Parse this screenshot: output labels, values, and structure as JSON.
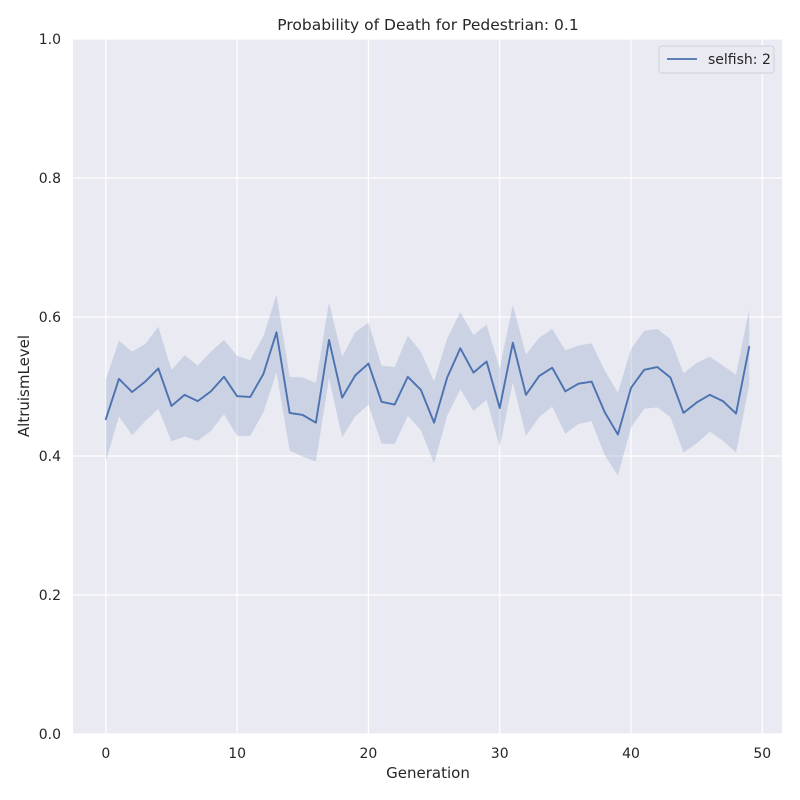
{
  "chart_data": {
    "type": "line",
    "title": "Probability of Death for Pedestrian: 0.1",
    "xlabel": "Generation",
    "ylabel": "AltruismLevel",
    "xlim": [
      -2.5,
      51.5
    ],
    "ylim": [
      0.0,
      1.0
    ],
    "x_ticks": [
      0,
      10,
      20,
      30,
      40,
      50
    ],
    "x_tick_labels": [
      "0",
      "10",
      "20",
      "30",
      "40",
      "50"
    ],
    "y_ticks": [
      0.0,
      0.2,
      0.4,
      0.6,
      0.8,
      1.0
    ],
    "y_tick_labels": [
      "0.0",
      "0.2",
      "0.4",
      "0.6",
      "0.8",
      "1.0"
    ],
    "grid": true,
    "legend_position": "top-right",
    "x": [
      0,
      1,
      2,
      3,
      4,
      5,
      6,
      7,
      8,
      9,
      10,
      11,
      12,
      13,
      14,
      15,
      16,
      17,
      18,
      19,
      20,
      21,
      22,
      23,
      24,
      25,
      26,
      27,
      28,
      29,
      30,
      31,
      32,
      33,
      34,
      35,
      36,
      37,
      38,
      39,
      40,
      41,
      42,
      43,
      44,
      45,
      46,
      47,
      48,
      49
    ],
    "series": [
      {
        "name": "selfish: 2",
        "color": "#4c72b0",
        "values": [
          0.453,
          0.511,
          0.492,
          0.507,
          0.526,
          0.472,
          0.488,
          0.479,
          0.493,
          0.514,
          0.486,
          0.485,
          0.518,
          0.578,
          0.462,
          0.459,
          0.448,
          0.567,
          0.484,
          0.516,
          0.533,
          0.478,
          0.474,
          0.514,
          0.495,
          0.448,
          0.513,
          0.555,
          0.52,
          0.536,
          0.469,
          0.563,
          0.488,
          0.515,
          0.527,
          0.493,
          0.504,
          0.507,
          0.463,
          0.431,
          0.498,
          0.524,
          0.528,
          0.513,
          0.462,
          0.477,
          0.488,
          0.479,
          0.461,
          0.557
        ],
        "ci_upper": [
          0.51,
          0.566,
          0.55,
          0.561,
          0.586,
          0.524,
          0.545,
          0.53,
          0.55,
          0.567,
          0.544,
          0.538,
          0.572,
          0.632,
          0.514,
          0.513,
          0.505,
          0.621,
          0.543,
          0.578,
          0.592,
          0.53,
          0.528,
          0.573,
          0.55,
          0.507,
          0.569,
          0.607,
          0.574,
          0.589,
          0.526,
          0.617,
          0.546,
          0.57,
          0.583,
          0.552,
          0.559,
          0.562,
          0.523,
          0.491,
          0.554,
          0.58,
          0.583,
          0.568,
          0.519,
          0.534,
          0.543,
          0.53,
          0.517,
          0.611
        ],
        "ci_lower": [
          0.392,
          0.457,
          0.43,
          0.45,
          0.468,
          0.421,
          0.428,
          0.422,
          0.436,
          0.46,
          0.429,
          0.429,
          0.463,
          0.52,
          0.408,
          0.399,
          0.392,
          0.512,
          0.427,
          0.457,
          0.474,
          0.418,
          0.417,
          0.458,
          0.437,
          0.389,
          0.458,
          0.496,
          0.465,
          0.481,
          0.413,
          0.506,
          0.429,
          0.456,
          0.471,
          0.432,
          0.446,
          0.45,
          0.401,
          0.372,
          0.441,
          0.468,
          0.47,
          0.456,
          0.405,
          0.418,
          0.435,
          0.422,
          0.405,
          0.502
        ],
        "band_color": "#4c72b0",
        "band_opacity": 0.2
      }
    ],
    "colors": {
      "plot_background": "#eaeaf2",
      "grid": "#ffffff",
      "text": "#262626"
    }
  }
}
